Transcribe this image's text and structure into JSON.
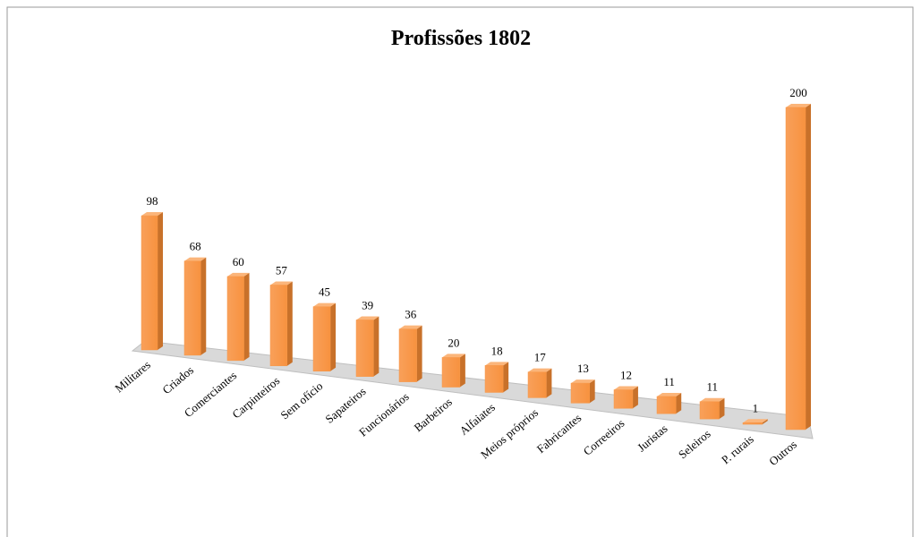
{
  "chart_data": {
    "type": "bar3d",
    "title": "Profissões 1802",
    "categories": [
      "Militares",
      "Criados",
      "Comerciantes",
      "Carpinteiros",
      "Sem ofício",
      "Sapateiros",
      "Funcionários",
      "Barbeiros",
      "Alfaiates",
      "Meios próprios",
      "Fabricantes",
      "Correeiros",
      "Juristas",
      "Seleiros",
      "P. rurais",
      "Outros"
    ],
    "values": [
      98,
      68,
      60,
      57,
      45,
      39,
      36,
      20,
      18,
      17,
      13,
      12,
      11,
      11,
      1,
      200
    ],
    "color": "#f79646"
  }
}
